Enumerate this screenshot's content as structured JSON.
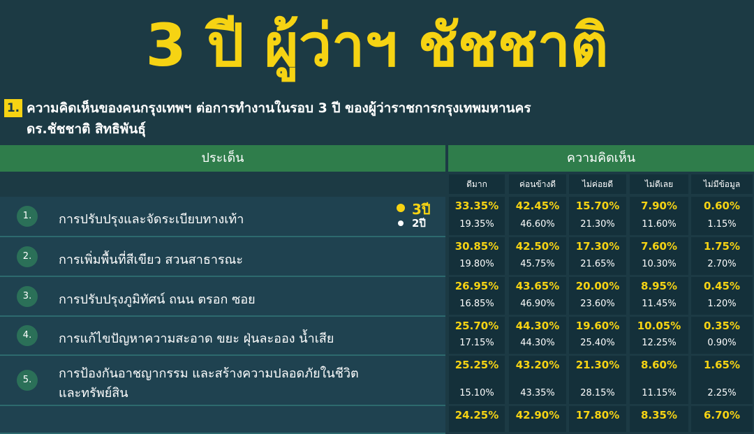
{
  "title": "3 ปี ผู้ว่าฯ ชัชชาติ",
  "section": {
    "number": "1.",
    "lines": [
      "ความคิดเห็นของคนกรุงเทพฯ ต่อการทำงานในรอบ 3 ปี ของผู้ว่าราชการกรุงเทพมหานคร",
      "ดร.ชัชชาติ สิทธิพันธุ์"
    ]
  },
  "table": {
    "header_left": "ประเด็น",
    "header_right": "ความคิดเห็น",
    "columns": [
      "ดีมาก",
      "ค่อนข้างดี",
      "ไม่ค่อยดี",
      "ไม่ดีเลย",
      "ไม่มีข้อมูล"
    ],
    "legend": [
      "3ปี",
      "2ปี"
    ],
    "rows": [
      {
        "number": "1.",
        "label": [
          "การปรับปรุงและจัดระเบียบทางเท้า"
        ],
        "year3": [
          "33.35%",
          "42.45%",
          "15.70%",
          "7.90%",
          "0.60%"
        ],
        "year2": [
          "19.35%",
          "46.60%",
          "21.30%",
          "11.60%",
          "1.15%"
        ]
      },
      {
        "number": "2.",
        "label": [
          "การเพิ่มพื้นที่สีเขียว สวนสาธารณะ"
        ],
        "year3": [
          "30.85%",
          "42.50%",
          "17.30%",
          "7.60%",
          "1.75%"
        ],
        "year2": [
          "19.80%",
          "45.75%",
          "21.65%",
          "10.30%",
          "2.70%"
        ]
      },
      {
        "number": "3.",
        "label": [
          "การปรับปรุงภูมิทัศน์ ถนน ตรอก ซอย"
        ],
        "year3": [
          "26.95%",
          "43.65%",
          "20.00%",
          "8.95%",
          "0.45%"
        ],
        "year2": [
          "16.85%",
          "46.90%",
          "23.60%",
          "11.45%",
          "1.20%"
        ]
      },
      {
        "number": "4.",
        "label": [
          "การแก้ไขปัญหาความสะอาด ขยะ ฝุ่นละออง น้ำเสีย"
        ],
        "year3": [
          "25.70%",
          "44.30%",
          "19.60%",
          "10.05%",
          "0.35%"
        ],
        "year2": [
          "17.15%",
          "44.30%",
          "25.40%",
          "12.25%",
          "0.90%"
        ]
      },
      {
        "number": "5.",
        "label": [
          "การป้องกันอาชญากรรม และสร้างความปลอดภัยในชีวิต",
          "และทรัพย์สิน"
        ],
        "year3": [
          "25.25%",
          "43.20%",
          "21.30%",
          "8.60%",
          "1.65%"
        ],
        "year2": [
          "15.10%",
          "43.35%",
          "28.15%",
          "11.15%",
          "2.25%"
        ]
      },
      {
        "year3": [
          "24.25%",
          "42.90%",
          "17.80%",
          "8.35%",
          "6.70%"
        ]
      }
    ]
  }
}
